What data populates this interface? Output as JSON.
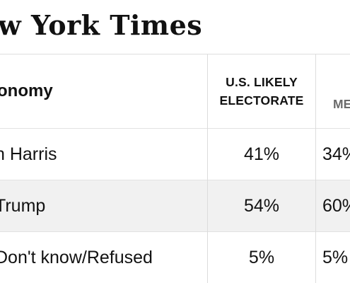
{
  "masthead": {
    "title": "New York Times",
    "visible_title": "w York Times"
  },
  "table": {
    "header": {
      "label": "onomy",
      "col1_line1": "U.S. LIKELY",
      "col1_line2": "ELECTORATE",
      "col2": "ME"
    },
    "rows": [
      {
        "label": "n Harris",
        "col1": "41%",
        "col2": "34%"
      },
      {
        "label": "Trump",
        "col1": "54%",
        "col2": "60%"
      },
      {
        "label": "Don't know/Refused",
        "col1": "5%",
        "col2": "5%"
      }
    ]
  },
  "colors": {
    "text": "#121212",
    "shaded_row": "#f1f1f1",
    "rule": "#e2e2e2",
    "muted_header": "#6a6a6a"
  }
}
